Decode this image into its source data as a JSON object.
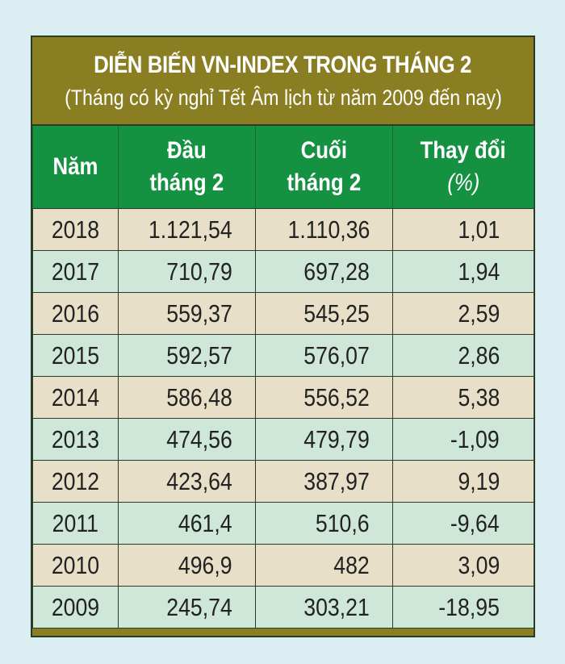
{
  "title": "DIỄN BIẾN VN-INDEX TRONG THÁNG 2",
  "subtitle": "(Tháng có kỳ nghỉ Tết Âm lịch từ năm 2009 đến nay)",
  "colors": {
    "title_bg": "#8a7e22",
    "header_bg": "#159142",
    "row_beige": "#e7dfc8",
    "row_mint": "#cfe7d8",
    "page_bg": "#dbeef2"
  },
  "chart_data": {
    "type": "table",
    "title": "DIỄN BIẾN VN-INDEX TRONG THÁNG 2",
    "subtitle": "(Tháng có kỳ nghỉ Tết Âm lịch từ năm 2009 đến nay)",
    "columns": {
      "year": "Năm",
      "start_line1": "Đầu",
      "start_line2": "tháng 2",
      "end_line1": "Cuối",
      "end_line2": "tháng 2",
      "change_line1": "Thay đổi",
      "change_line2": "(%)"
    },
    "rows": [
      {
        "year": "2018",
        "start": "1.121,54",
        "end": "1.110,36",
        "change": "1,01"
      },
      {
        "year": "2017",
        "start": "710,79",
        "end": "697,28",
        "change": "1,94"
      },
      {
        "year": "2016",
        "start": "559,37",
        "end": "545,25",
        "change": "2,59"
      },
      {
        "year": "2015",
        "start": "592,57",
        "end": "576,07",
        "change": "2,86"
      },
      {
        "year": "2014",
        "start": "586,48",
        "end": "556,52",
        "change": "5,38"
      },
      {
        "year": "2013",
        "start": "474,56",
        "end": "479,79",
        "change": "-1,09"
      },
      {
        "year": "2012",
        "start": "423,64",
        "end": "387,97",
        "change": "9,19"
      },
      {
        "year": "2011",
        "start": "461,4",
        "end": "510,6",
        "change": "-9,64"
      },
      {
        "year": "2010",
        "start": "496,9",
        "end": "482",
        "change": "3,09"
      },
      {
        "year": "2009",
        "start": "245,74",
        "end": "303,21",
        "change": "-18,95"
      }
    ]
  }
}
